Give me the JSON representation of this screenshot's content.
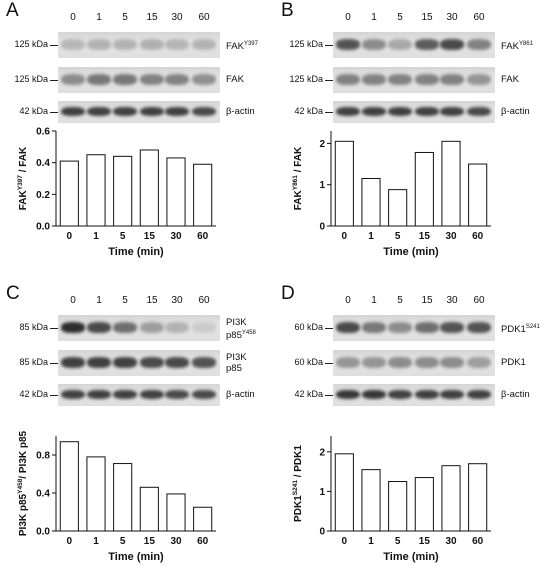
{
  "timepoints": [
    "0",
    "1",
    "5",
    "15",
    "30",
    "60"
  ],
  "panels": [
    {
      "letter": "A",
      "blots": [
        {
          "kda": "125 kDa",
          "label": "FAK",
          "sup": "Y397",
          "label2": "",
          "intensities": [
            0.22,
            0.25,
            0.24,
            0.26,
            0.23,
            0.24
          ]
        },
        {
          "kda": "125 kDa",
          "label": "FAK",
          "sup": "",
          "label2": "",
          "intensities": [
            0.45,
            0.55,
            0.55,
            0.5,
            0.5,
            0.42
          ]
        },
        {
          "kda": "42 kDa",
          "label": "β-actin",
          "sup": "",
          "label2": "",
          "intensities": [
            0.85,
            0.85,
            0.85,
            0.85,
            0.85,
            0.8
          ]
        }
      ],
      "chart_data": {
        "type": "bar",
        "categories": [
          "0",
          "1",
          "5",
          "15",
          "30",
          "60"
        ],
        "values": [
          0.41,
          0.45,
          0.44,
          0.48,
          0.43,
          0.39
        ],
        "ylabel": "FAK",
        "ylabel_sup": "Y397",
        "ylabel_tail": " / FAK",
        "xlabel": "Time (min)",
        "ylim": [
          0,
          0.6
        ],
        "yticks": [
          "0.0",
          "0.2",
          "0.4",
          "0.6"
        ]
      }
    },
    {
      "letter": "B",
      "blots": [
        {
          "kda": "125 kDa",
          "label": "FAK",
          "sup": "Y861",
          "label2": "",
          "intensities": [
            0.75,
            0.45,
            0.3,
            0.7,
            0.8,
            0.5
          ]
        },
        {
          "kda": "125 kDa",
          "label": "FAK",
          "sup": "",
          "label2": "",
          "intensities": [
            0.5,
            0.5,
            0.5,
            0.5,
            0.5,
            0.4
          ]
        },
        {
          "kda": "42 kDa",
          "label": "β-actin",
          "sup": "",
          "label2": "",
          "intensities": [
            0.85,
            0.85,
            0.85,
            0.85,
            0.85,
            0.8
          ]
        }
      ],
      "chart_data": {
        "type": "bar",
        "categories": [
          "0",
          "1",
          "5",
          "15",
          "30",
          "60"
        ],
        "values": [
          2.05,
          1.15,
          0.88,
          1.78,
          2.05,
          1.5
        ],
        "ylabel": "FAK",
        "ylabel_sup": "Y861",
        "ylabel_tail": " / FAK",
        "xlabel": "Time (min)",
        "ylim": [
          0,
          2.3
        ],
        "yticks": [
          "0",
          "1",
          "2"
        ]
      }
    },
    {
      "letter": "C",
      "blots": [
        {
          "kda": "85 kDa",
          "label": "PI3K",
          "sup": "",
          "label2": "p85",
          "sup2": "Y458",
          "intensities": [
            0.95,
            0.8,
            0.6,
            0.35,
            0.25,
            0.12
          ]
        },
        {
          "kda": "85 kDa",
          "label": "PI3K",
          "sup": "",
          "label2": "p85",
          "sup2": "",
          "intensities": [
            0.85,
            0.85,
            0.85,
            0.8,
            0.8,
            0.75
          ]
        },
        {
          "kda": "42 kDa",
          "label": "β-actin",
          "sup": "",
          "label2": "",
          "intensities": [
            0.85,
            0.85,
            0.85,
            0.85,
            0.8,
            0.8
          ]
        }
      ],
      "chart_data": {
        "type": "bar",
        "categories": [
          "0",
          "1",
          "5",
          "15",
          "30",
          "60"
        ],
        "values": [
          0.94,
          0.78,
          0.71,
          0.46,
          0.39,
          0.25
        ],
        "ylabel": "PI3K p85",
        "ylabel_sup": "Y458",
        "ylabel_tail": "/ PI3K p85",
        "xlabel": "Time (min)",
        "ylim": [
          0,
          1.0
        ],
        "yticks": [
          "0.0",
          "0.4",
          "0.8"
        ]
      }
    },
    {
      "letter": "D",
      "blots": [
        {
          "kda": "60 kDa",
          "label": "PDK1",
          "sup": "S241",
          "label2": "",
          "intensities": [
            0.8,
            0.55,
            0.45,
            0.6,
            0.75,
            0.75
          ]
        },
        {
          "kda": "60 kDa",
          "label": "PDK1",
          "sup": "",
          "label2": "",
          "intensities": [
            0.4,
            0.4,
            0.45,
            0.45,
            0.45,
            0.35
          ]
        },
        {
          "kda": "42 kDa",
          "label": "β-actin",
          "sup": "",
          "label2": "",
          "intensities": [
            0.9,
            0.9,
            0.85,
            0.85,
            0.85,
            0.85
          ]
        }
      ],
      "chart_data": {
        "type": "bar",
        "categories": [
          "0",
          "1",
          "5",
          "15",
          "30",
          "60"
        ],
        "values": [
          1.95,
          1.55,
          1.25,
          1.35,
          1.65,
          1.7
        ],
        "ylabel": "PDK1",
        "ylabel_sup": "S241",
        "ylabel_tail": " / PDK1",
        "xlabel": "Time (min)",
        "ylim": [
          0,
          2.4
        ],
        "yticks": [
          "0",
          "1",
          "2"
        ]
      }
    }
  ]
}
